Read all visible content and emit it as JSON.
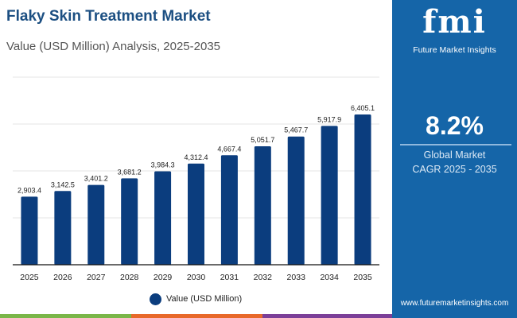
{
  "header": {
    "title": "Flaky Skin Treatment Market",
    "subtitle": "Value (USD Million) Analysis, 2025-2035"
  },
  "sidebar": {
    "logo_text": "fmi",
    "brand": "Future Market Insights",
    "cagr_value": "8.2%",
    "cagr_label_1": "Global Market",
    "cagr_label_2": "CAGR 2025 - 2035",
    "url": "www.futuremarketinsights.com"
  },
  "colors": {
    "bar": "#0b3d7e",
    "panel": "#1565a8",
    "strip": [
      "#7ab648",
      "#e8692a",
      "#7b3f98"
    ]
  },
  "chart_data": {
    "type": "bar",
    "categories": [
      "2025",
      "2026",
      "2027",
      "2028",
      "2029",
      "2030",
      "2031",
      "2032",
      "2033",
      "2034",
      "2035"
    ],
    "series": [
      {
        "name": "Value (USD Million)",
        "values": [
          2903.4,
          3142.5,
          3401.2,
          3681.2,
          3984.3,
          4312.4,
          4667.4,
          5051.7,
          5467.7,
          5917.9,
          6405.1
        ]
      }
    ],
    "data_labels": [
      "2,903.4",
      "3,142.5",
      "3,401.2",
      "3,681.2",
      "3,984.3",
      "4,312.4",
      "4,667.4",
      "5,051.7",
      "5,467.7",
      "5,917.9",
      "6,405.1"
    ],
    "ylim": [
      0,
      8000
    ],
    "grid": true,
    "legend": "bottom",
    "xlabel": "",
    "ylabel": ""
  }
}
